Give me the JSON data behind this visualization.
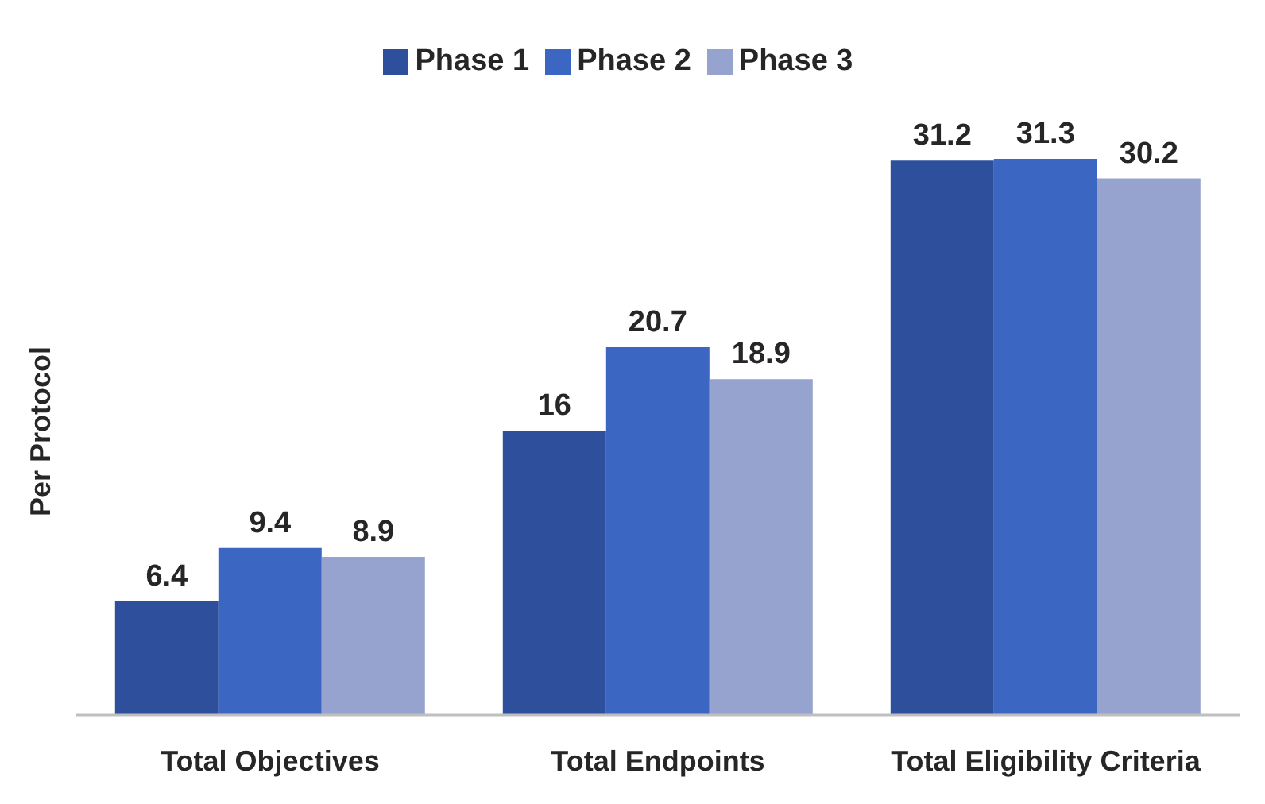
{
  "chart_data": {
    "type": "bar",
    "ylabel": "Per Protocol",
    "categories": [
      "Total Objectives",
      "Total Endpoints",
      "Total Eligibility Criteria"
    ],
    "series": [
      {
        "name": "Phase 1",
        "color": "#2d4f9c",
        "values": [
          6.4,
          16,
          31.2
        ]
      },
      {
        "name": "Phase 2",
        "color": "#3b66c2",
        "values": [
          9.4,
          20.7,
          31.3
        ]
      },
      {
        "name": "Phase 3",
        "color": "#97a3cf",
        "values": [
          8.9,
          18.9,
          30.2
        ]
      }
    ],
    "data_labels": true,
    "legend": "top"
  }
}
